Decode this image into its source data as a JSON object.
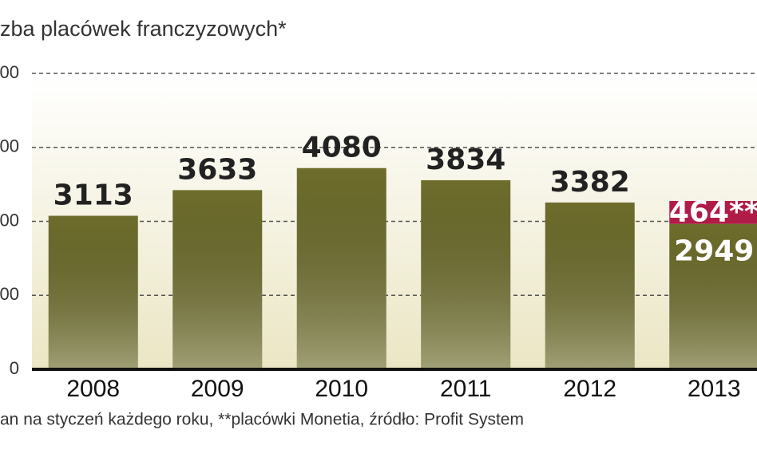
{
  "chart_data": {
    "type": "stacked_bar",
    "title": "zba placówek franczyzowych*",
    "footnote": "an na styczeń każdego roku, **placówki Monetia, źródło: Profit System",
    "categories": [
      "2008",
      "2009",
      "2010",
      "2011",
      "2012",
      "2013"
    ],
    "series": [
      {
        "color": "#6e6d2c",
        "values": [
          3113,
          3633,
          4080,
          3834,
          3382,
          2949
        ]
      },
      {
        "color": "#b01c48",
        "values": [
          null,
          null,
          null,
          null,
          null,
          464
        ],
        "value_labels": [
          null,
          null,
          null,
          null,
          null,
          "464**"
        ]
      }
    ],
    "ylim": [
      0,
      6000
    ],
    "yticks": [
      0,
      {
        "value": 1500,
        "label": "00"
      },
      {
        "value": 3000,
        "label": "00"
      },
      {
        "value": 4500,
        "label": "00"
      },
      {
        "value": 6000,
        "label": "00"
      }
    ],
    "grid": true
  }
}
